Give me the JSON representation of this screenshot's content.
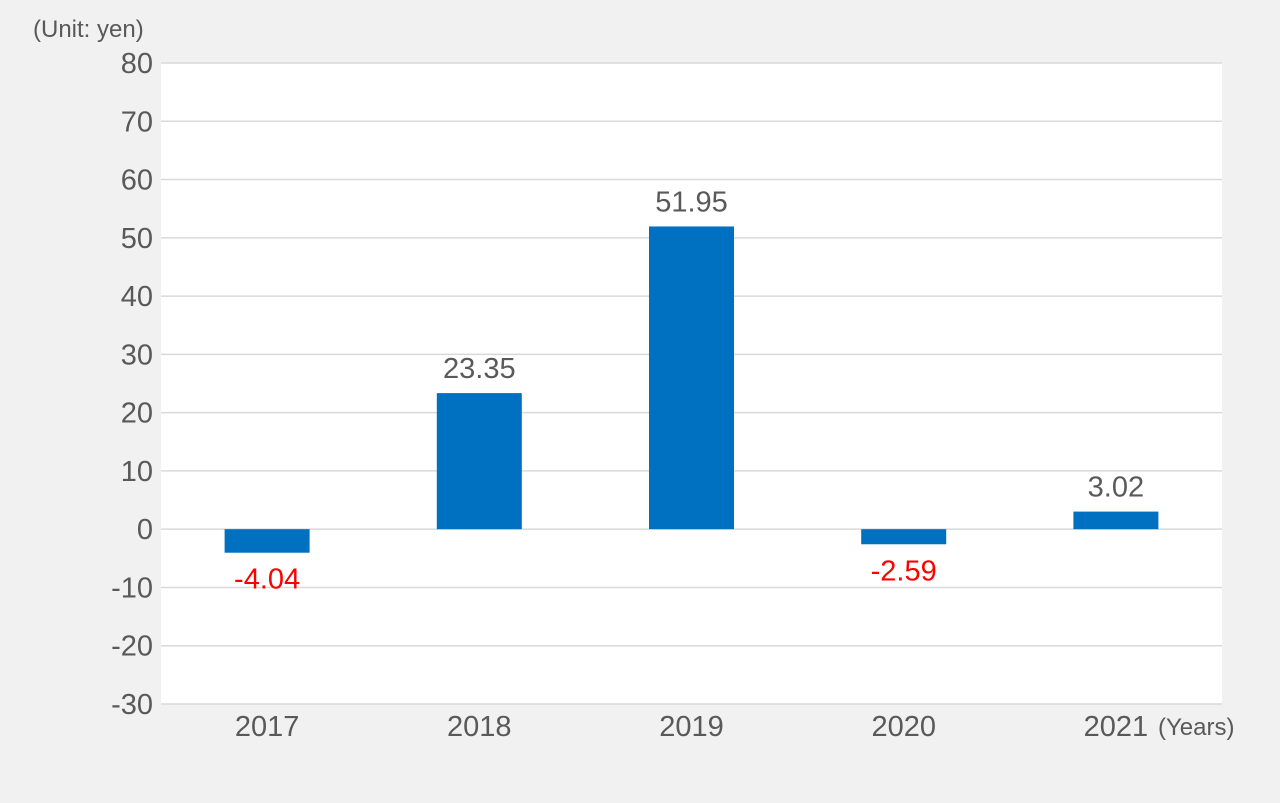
{
  "chart_data": {
    "type": "bar",
    "categories": [
      "2017",
      "2018",
      "2019",
      "2020",
      "2021"
    ],
    "values": [
      -4.04,
      23.35,
      51.95,
      -2.59,
      3.02
    ],
    "data_labels": [
      "-4.04",
      "23.35",
      "51.95",
      "-2.59",
      "3.02"
    ],
    "ylabel": "(Unit: yen)",
    "xlabel": "(Years)",
    "ylim": [
      -30,
      80
    ],
    "yticks": [
      80,
      70,
      60,
      50,
      40,
      30,
      20,
      10,
      0,
      -10,
      -20,
      -30
    ],
    "grid": true,
    "legend": "none",
    "colors": {
      "bar": "#0070c0",
      "positive_label": "#595959",
      "negative_label": "#ff0000",
      "grid": "#d9d9d9",
      "plot_background": "#ffffff",
      "page_background": "#f1f1f1",
      "axis_text": "#595959"
    }
  }
}
